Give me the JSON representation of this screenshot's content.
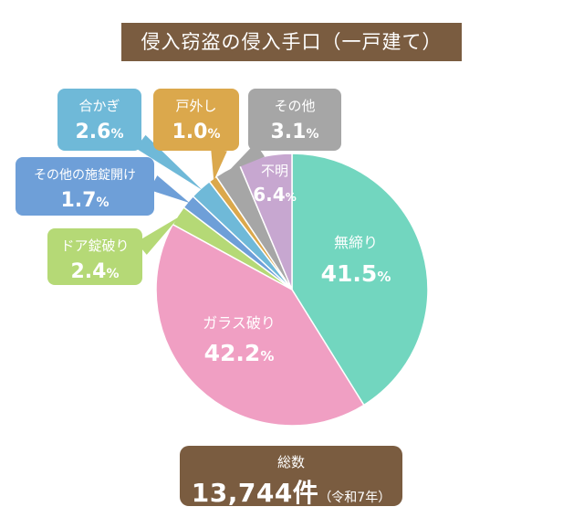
{
  "chart_data": {
    "type": "pie",
    "title": "侵入窃盗の侵入手口（一戸建て）",
    "start_angle_deg": 0,
    "direction": "clockwise",
    "slices": [
      {
        "label": "無締り",
        "value": 41.5,
        "value_text": "41.5",
        "unit": "%",
        "color": "#72d6bf"
      },
      {
        "label": "ガラス破り",
        "value": 42.2,
        "value_text": "42.2",
        "unit": "%",
        "color": "#f09fc3"
      },
      {
        "label": "ドア錠破り",
        "value": 2.4,
        "value_text": "2.4",
        "unit": "%",
        "color": "#b5d976"
      },
      {
        "label": "その他の施錠開け",
        "value": 1.7,
        "value_text": "1.7",
        "unit": "%",
        "color": "#6e9fd8"
      },
      {
        "label": "合かぎ",
        "value": 2.6,
        "value_text": "2.6",
        "unit": "%",
        "color": "#6fb9d8"
      },
      {
        "label": "戸外し",
        "value": 1.0,
        "value_text": "1.0",
        "unit": "%",
        "color": "#dba84c"
      },
      {
        "label": "その他",
        "value": 3.1,
        "value_text": "3.1",
        "unit": "%",
        "color": "#a6a6a6"
      },
      {
        "label": "不明",
        "value": 6.4,
        "value_text": "6.4",
        "unit": "%",
        "color": "#c7a7d0"
      }
    ],
    "total": {
      "label": "総数",
      "value": "13,744件",
      "suffix": "（令和7年）"
    }
  },
  "colors": {
    "box_background": "#7a5c40",
    "separator": "#ffffff"
  }
}
